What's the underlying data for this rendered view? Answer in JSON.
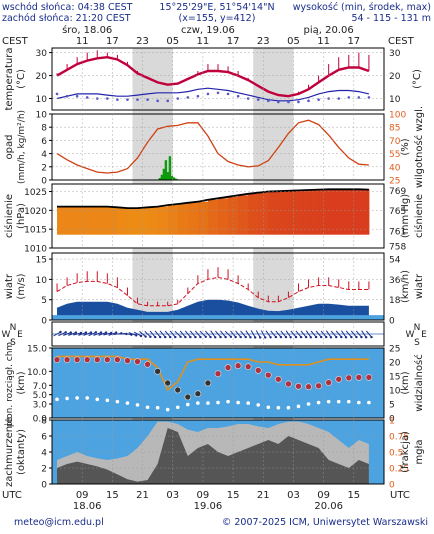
{
  "header": {
    "sunrise": "wschód słońca: 04:38 CEST",
    "sunset": "zachód słońca: 21:20 CEST",
    "coords": "15°25'29\"E, 51°54'14\"N",
    "grid": "(x=155, y=412)",
    "elevation_label": "wysokość (min, środek, max)",
    "elevation_values": "54 - 115 - 131 m"
  },
  "top_axis": {
    "tz_left": "CEST",
    "tz_right": "CEST",
    "day_labels": [
      {
        "hour": 12,
        "text": "śro, 18.06"
      },
      {
        "hour": 36,
        "text": "czw, 19.06"
      },
      {
        "hour": 60,
        "text": "pią, 20.06"
      }
    ],
    "hour_ticks": [
      {
        "hour": 11,
        "text": "11"
      },
      {
        "hour": 17,
        "text": "17"
      },
      {
        "hour": 23,
        "text": "23"
      },
      {
        "hour": 29,
        "text": "05"
      },
      {
        "hour": 35,
        "text": "11"
      },
      {
        "hour": 41,
        "text": "17"
      },
      {
        "hour": 47,
        "text": "23"
      },
      {
        "hour": 53,
        "text": "05"
      },
      {
        "hour": 59,
        "text": "11"
      },
      {
        "hour": 65,
        "text": "17"
      }
    ]
  },
  "bottom_axis": {
    "tz": "UTC",
    "tz_right": "UTC",
    "hour_ticks": [
      {
        "hour": 11,
        "text": "09"
      },
      {
        "hour": 17,
        "text": "15"
      },
      {
        "hour": 23,
        "text": "21"
      },
      {
        "hour": 29,
        "text": "03"
      },
      {
        "hour": 35,
        "text": "09"
      },
      {
        "hour": 41,
        "text": "15"
      },
      {
        "hour": 47,
        "text": "21"
      },
      {
        "hour": 53,
        "text": "03"
      },
      {
        "hour": 59,
        "text": "09"
      },
      {
        "hour": 65,
        "text": "15"
      }
    ],
    "day_labels": [
      {
        "hour": 12,
        "text": "18.06"
      },
      {
        "hour": 36,
        "text": "19.06"
      },
      {
        "hour": 60,
        "text": "20.06"
      }
    ]
  },
  "footer": {
    "email": "meteo@icm.edu.pl",
    "copyright": "© 2007-2025 ICM, Uniwersytet Warszawski"
  },
  "colors": {
    "night": "#d9d9d9",
    "temp_line": "#c0003c",
    "temp_bars": "#c0003c",
    "dew_line": "#2222aa",
    "humidity_line": "#d04010",
    "precip": "#0a9a0a",
    "wind_line": "#d01020",
    "gust": "#d01020",
    "sky_blue": "#4da3e0",
    "cloud_dark": "#555555",
    "cloud_light": "#b8b8b8",
    "orange_axis": "#e06020",
    "visibility_line": "#e0901c"
  },
  "chart_data": [
    {
      "type": "line",
      "id": "temperature",
      "ylabel": "temperatura",
      "ylabel_right": "(°C)",
      "yunit": "(°C)",
      "ylim": [
        5,
        32
      ],
      "yticks": [
        10,
        20,
        30
      ],
      "x_hours": [
        6,
        8,
        10,
        12,
        14,
        16,
        18,
        20,
        22,
        24,
        26,
        28,
        30,
        32,
        34,
        36,
        38,
        40,
        42,
        44,
        46,
        48,
        50,
        52,
        54,
        56,
        58,
        60,
        62,
        64,
        66,
        68
      ],
      "temperature": [
        20,
        22.5,
        25,
        26.5,
        27.5,
        28,
        27,
        24.5,
        21,
        19,
        17,
        16,
        16.5,
        18.5,
        20.5,
        22,
        22,
        21.5,
        20,
        18,
        15.5,
        13,
        11.5,
        11,
        12,
        14,
        17,
        20,
        22.5,
        23.5,
        23.5,
        22
      ],
      "dew_point": [
        10,
        11,
        12,
        12,
        12,
        11.5,
        11,
        11,
        11.5,
        12,
        12.5,
        12.5,
        12.5,
        13,
        14,
        14.5,
        14,
        13.5,
        12.5,
        11.5,
        10.5,
        9.5,
        9,
        9,
        9.5,
        10.5,
        12,
        13,
        13.5,
        13.5,
        13,
        12
      ],
      "bars_max": [
        21,
        25,
        28,
        30,
        31,
        30,
        29,
        26,
        22,
        19,
        17,
        16,
        17,
        19,
        22,
        25,
        25,
        24,
        22,
        19,
        16,
        13,
        12,
        11,
        13,
        16,
        20,
        25,
        28,
        29,
        30,
        29
      ],
      "dots": [
        12,
        11,
        11,
        10.5,
        10,
        10,
        9.5,
        9.5,
        9.5,
        9.5,
        9,
        9,
        10,
        10.5,
        11,
        12,
        12.5,
        12,
        11,
        10,
        9.5,
        9,
        8.5,
        8.5,
        8.5,
        9,
        9.5,
        10,
        10,
        10.5,
        10.5,
        10.5
      ]
    },
    {
      "type": "bar",
      "id": "precipitation",
      "ylabel": "opad",
      "yunit": "(mm/h, kg/m²/h)",
      "ylabel_right": "wilgotność wzgl.",
      "yunit_right": "(%)",
      "ylim": [
        0,
        10
      ],
      "yticks": [
        0,
        2,
        4,
        6,
        8,
        10
      ],
      "y2lim": [
        25,
        100
      ],
      "y2ticks": [
        25,
        40,
        55,
        70,
        85,
        100
      ],
      "x_hours": [
        6,
        8,
        10,
        12,
        14,
        16,
        18,
        20,
        22,
        24,
        26,
        28,
        30,
        32,
        34,
        36,
        38,
        40,
        42,
        44,
        46,
        48,
        50,
        52,
        54,
        56,
        58,
        60,
        62,
        64,
        66,
        68
      ],
      "humidity": [
        55,
        48,
        42,
        38,
        34,
        33,
        34,
        38,
        50,
        68,
        83,
        86,
        87,
        90,
        90,
        75,
        55,
        46,
        42,
        40,
        41,
        47,
        62,
        78,
        90,
        93,
        88,
        76,
        62,
        50,
        43,
        42
      ],
      "precip_hours": [
        26.4,
        26.8,
        27.2,
        27.6,
        28.0,
        28.4,
        28.8,
        29.2,
        29.6,
        30.0
      ],
      "precip_values": [
        0.3,
        0.8,
        1.7,
        3.0,
        1.2,
        3.6,
        0.6,
        0.4,
        0.2,
        0.1
      ]
    },
    {
      "type": "area",
      "id": "pressure",
      "ylabel": "ciśnienie",
      "yunit": "(hPa)",
      "ylabel_right": "ciśnienie",
      "yunit_right": "(mm Hg)",
      "ylim": [
        1010,
        1027
      ],
      "yticks": [
        1010,
        1015,
        1020,
        1025
      ],
      "y2ticks": [
        758,
        761,
        765,
        769
      ],
      "x_hours": [
        6,
        8,
        10,
        12,
        14,
        16,
        18,
        20,
        22,
        24,
        26,
        28,
        30,
        32,
        34,
        36,
        38,
        40,
        42,
        44,
        46,
        48,
        50,
        52,
        54,
        56,
        58,
        60,
        62,
        64,
        66,
        68
      ],
      "pressure": [
        1021,
        1021,
        1021,
        1021,
        1021,
        1021,
        1020.8,
        1020.6,
        1020.6,
        1020.8,
        1021,
        1021.4,
        1021.7,
        1022,
        1022.3,
        1022.8,
        1023.2,
        1023.6,
        1024,
        1024.4,
        1024.7,
        1025,
        1025.1,
        1025.2,
        1025.3,
        1025.4,
        1025.5,
        1025.6,
        1025.6,
        1025.6,
        1025.6,
        1025.5
      ]
    },
    {
      "type": "line",
      "id": "wind",
      "ylabel": "wiatr",
      "yunit": "(m/s)",
      "ylabel_right": "wiatr",
      "yunit_right": "(km/h)",
      "ylim": [
        0,
        16.5
      ],
      "yticks": [
        0,
        5,
        10,
        15
      ],
      "y2ticks": [
        0,
        18,
        36,
        54
      ],
      "x_hours": [
        6,
        8,
        10,
        12,
        14,
        16,
        18,
        20,
        22,
        24,
        26,
        28,
        30,
        32,
        34,
        36,
        38,
        40,
        42,
        44,
        46,
        48,
        50,
        52,
        54,
        56,
        58,
        60,
        62,
        64,
        66,
        68
      ],
      "speed": [
        3,
        4,
        4.5,
        4.5,
        4.5,
        4.5,
        4,
        3,
        2.5,
        2,
        2,
        2,
        2.5,
        3.5,
        4.5,
        5,
        5,
        4.8,
        4.3,
        3.5,
        2.8,
        2.3,
        2.2,
        2.5,
        3,
        3.5,
        4,
        4,
        3.8,
        3.5,
        3.5,
        3.5
      ],
      "gust": [
        7,
        8.5,
        9.2,
        9.5,
        9.5,
        9,
        8,
        6,
        4,
        3.5,
        3.5,
        3.5,
        4,
        6.5,
        9,
        10,
        10.5,
        10,
        9,
        7.5,
        5.5,
        4.5,
        4.5,
        5.5,
        7,
        8,
        8.5,
        8.5,
        8,
        7.5,
        7.5,
        7.5
      ],
      "gust_bar_max": [
        9,
        10.5,
        11.5,
        12,
        12,
        11.5,
        10.5,
        8,
        5.5,
        4.5,
        4.5,
        4.5,
        5,
        8,
        11,
        12.5,
        13,
        12.5,
        11,
        9,
        7,
        6,
        6,
        7,
        9,
        10,
        10.5,
        10.5,
        10,
        9.5,
        9.5,
        9.5
      ]
    },
    {
      "type": "scatter",
      "id": "wind_direction",
      "ylabel_n": "N",
      "ylabel_w": "W",
      "ylabel_e": "E",
      "ylabel_s": "S",
      "x_hours": [
        6,
        7,
        8,
        9,
        10,
        11,
        12,
        13,
        14,
        15,
        16,
        17,
        18,
        19,
        20,
        21,
        22,
        23,
        24,
        25,
        26,
        27,
        28,
        29,
        30,
        31,
        32,
        33,
        34,
        35,
        36,
        37,
        38,
        39,
        40,
        41,
        42,
        43,
        44,
        45,
        46,
        47,
        48,
        49,
        50,
        51,
        52,
        53,
        54,
        55,
        56,
        57,
        58,
        59,
        60,
        61,
        62,
        63,
        64,
        65,
        66,
        67,
        68
      ],
      "direction_deg": [
        240,
        245,
        250,
        250,
        255,
        250,
        250,
        245,
        250,
        250,
        255,
        250,
        260,
        270,
        280,
        290,
        300,
        310,
        315,
        320,
        320,
        320,
        320,
        320,
        315,
        320,
        320,
        320,
        320,
        315,
        320,
        325,
        320,
        320,
        315,
        320,
        320,
        320,
        325,
        330,
        330,
        330,
        325,
        320,
        320,
        320,
        325,
        320,
        320,
        320,
        325,
        320,
        320,
        320,
        325,
        320,
        320,
        325,
        320,
        320,
        320,
        325,
        320
      ]
    },
    {
      "type": "scatter",
      "id": "visibility",
      "ylabel": "pion. rozciągł. chm.",
      "yunit": "(km)",
      "ylabel_right": "widzialność",
      "yunit_right": "(km)",
      "ylim": [
        0,
        15
      ],
      "yticks": [
        0.0,
        3.0,
        5.0,
        7.0,
        10.0,
        15.0
      ],
      "y2ticks": [
        0,
        5,
        10,
        15,
        20,
        25
      ],
      "x_hours": [
        6,
        8,
        10,
        12,
        14,
        16,
        18,
        20,
        22,
        24,
        26,
        28,
        30,
        32,
        34,
        36,
        38,
        40,
        42,
        44,
        46,
        48,
        50,
        52,
        54,
        56,
        58,
        60,
        62,
        64,
        66,
        68
      ],
      "visibility_km": [
        22,
        22,
        22,
        22,
        22,
        22,
        22,
        21,
        21,
        21,
        18,
        10,
        13,
        20,
        21,
        21,
        21,
        21,
        21,
        21,
        20,
        20,
        19,
        19,
        19,
        19,
        20,
        21,
        21,
        21,
        21,
        21
      ],
      "cloud_base": [
        12.5,
        12.5,
        12.5,
        12.5,
        12.5,
        12.5,
        12.5,
        12.3,
        12.1,
        11.5,
        10,
        7.5,
        6,
        4.5,
        5.2,
        7.5,
        9.5,
        10.8,
        11.2,
        11,
        10.2,
        9.2,
        8.3,
        7.3,
        6.8,
        6.7,
        6.9,
        7.6,
        8.3,
        8.6,
        8.7,
        8.7
      ],
      "cloud_top": [
        4,
        4.2,
        4.3,
        4.3,
        4,
        3.8,
        3.5,
        3.2,
        2.8,
        2.3,
        2.2,
        1.8,
        2.3,
        2.9,
        3.2,
        3.2,
        3.3,
        3.5,
        3.3,
        3.2,
        2.8,
        2.3,
        2.2,
        2.2,
        2.5,
        3,
        3.3,
        3.5,
        3.5,
        3.5,
        3.3,
        3.3
      ]
    },
    {
      "type": "area",
      "id": "cloud_cover",
      "ylabel": "zachmurzenie",
      "yunit": "(oktanty)",
      "ylabel_right": "(frakcja)",
      "yunit_right": "mgła",
      "ylim": [
        0,
        8
      ],
      "yticks": [
        0,
        2,
        4,
        6,
        8
      ],
      "y2ticks": [
        0,
        0.25,
        0.5,
        0.75,
        1
      ],
      "x_hours": [
        6,
        8,
        10,
        12,
        14,
        16,
        18,
        20,
        22,
        24,
        26,
        28,
        30,
        32,
        34,
        36,
        38,
        40,
        42,
        44,
        46,
        48,
        50,
        52,
        54,
        56,
        58,
        60,
        62,
        64,
        66,
        68
      ],
      "low_cloud": [
        2,
        2.5,
        2.8,
        2.5,
        2.2,
        1.8,
        1.2,
        0.6,
        0.3,
        0.5,
        2.5,
        7,
        6.5,
        3.5,
        4.5,
        5,
        4,
        3.5,
        4,
        4.5,
        5,
        5.5,
        5,
        6,
        5.5,
        5,
        4.5,
        3,
        2.5,
        2,
        3,
        2.5
      ],
      "high_cloud": [
        3,
        3.5,
        4,
        3.5,
        3.2,
        3,
        3.2,
        3.5,
        4.5,
        6,
        7.8,
        7.8,
        7.5,
        6.8,
        6.5,
        7,
        7,
        7.2,
        7.5,
        7.5,
        7.2,
        7,
        7.5,
        7.8,
        7.8,
        7.5,
        7,
        6.5,
        5.5,
        4.5,
        5.5,
        5
      ]
    }
  ]
}
